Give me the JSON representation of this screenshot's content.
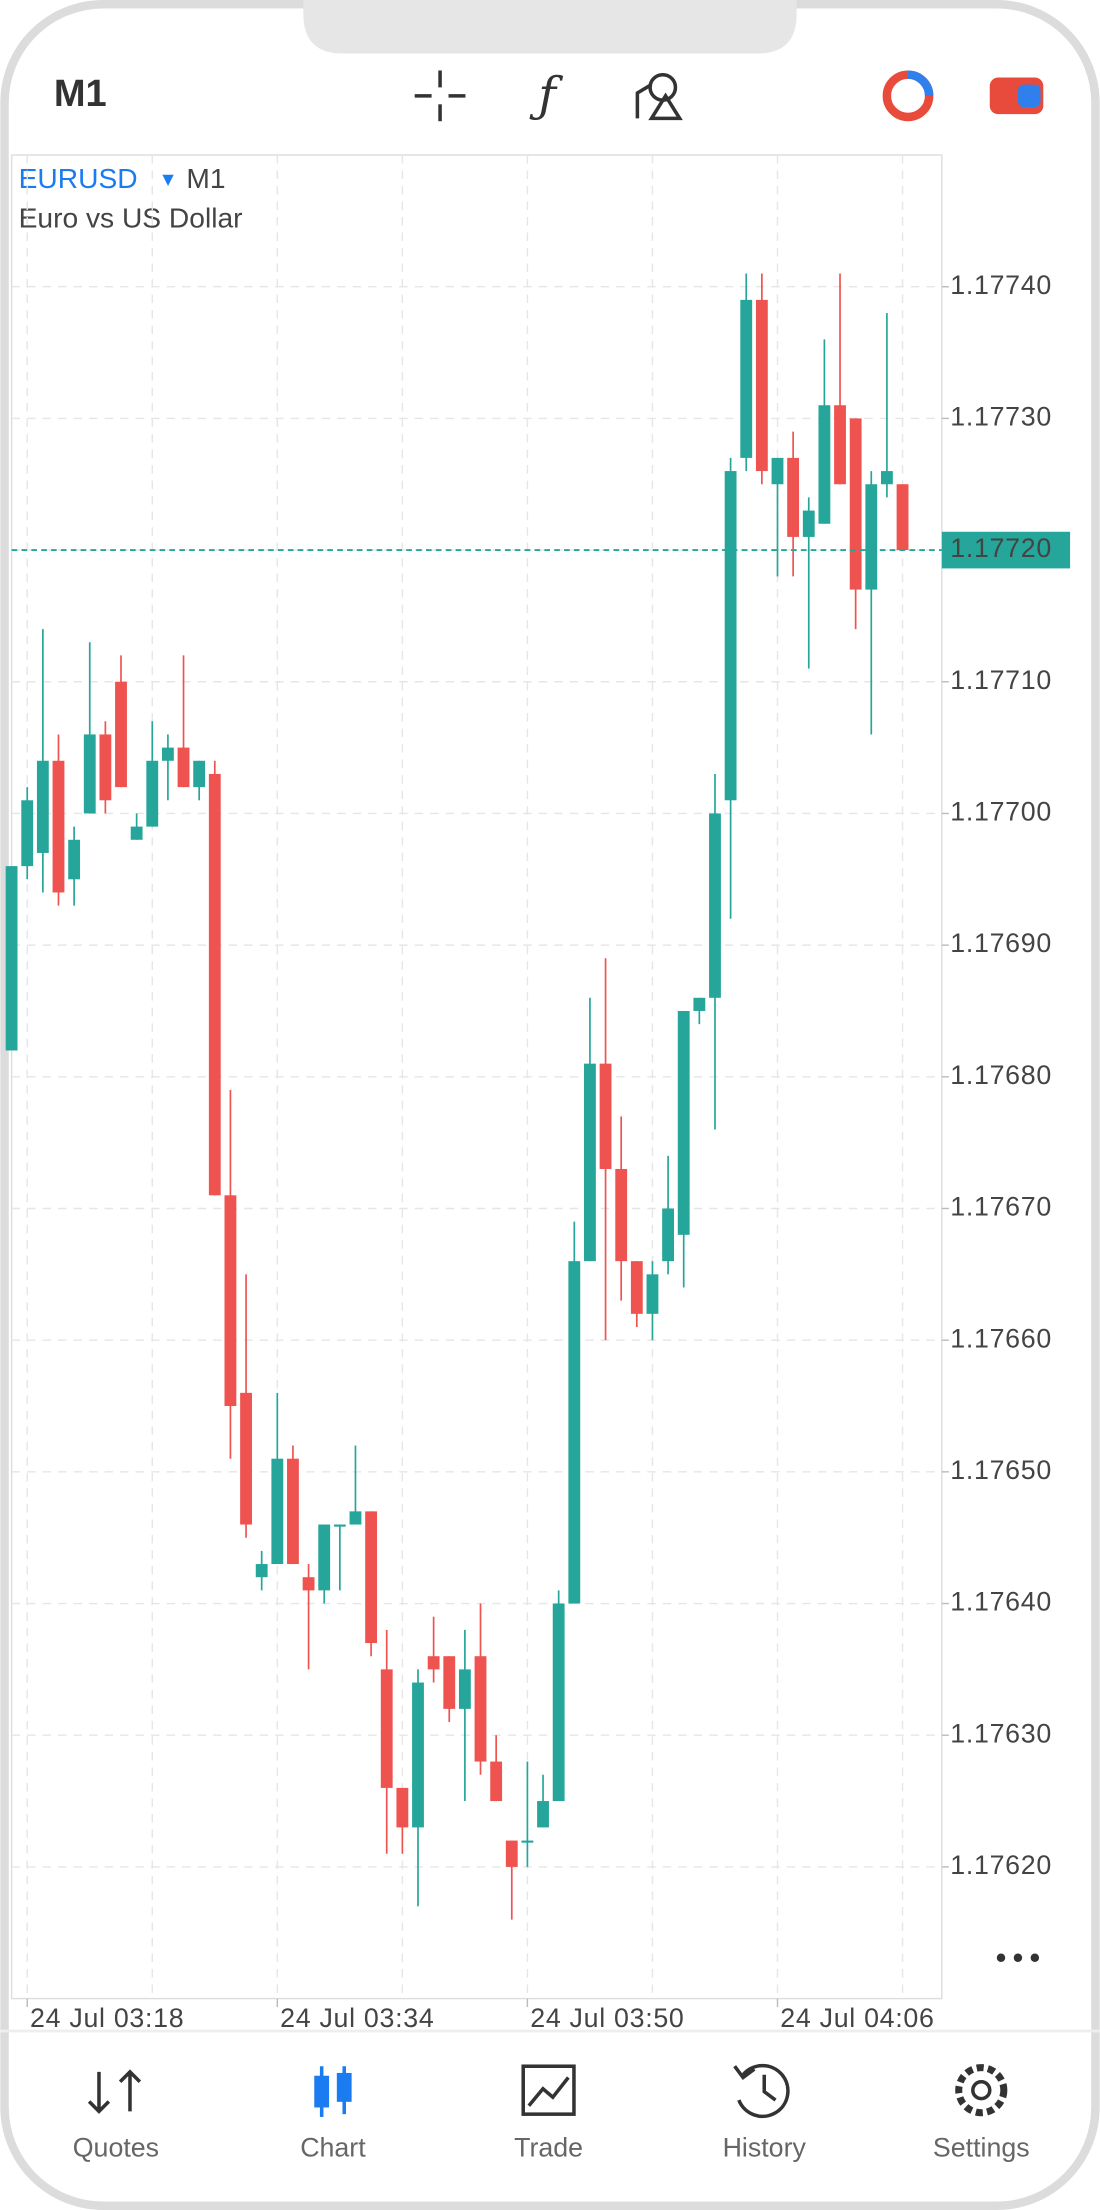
{
  "ui": {
    "timeframe": "M1",
    "symbol": "EURUSD",
    "symbol_timeframe": "M1",
    "description": "Euro vs US Dollar",
    "nav": [
      "Quotes",
      "Chart",
      "Trade",
      "History",
      "Settings"
    ],
    "active_nav": 1
  },
  "chart_data": {
    "type": "candlestick",
    "categories": [
      null,
      "24 Jul 03:18",
      null,
      null,
      null,
      null,
      null,
      null,
      null,
      null,
      null,
      null,
      null,
      null,
      null,
      null,
      null,
      "24 Jul 03:34",
      null,
      null,
      null,
      null,
      null,
      null,
      null,
      null,
      null,
      null,
      null,
      null,
      null,
      null,
      null,
      "24 Jul 03:50",
      null,
      null,
      null,
      null,
      null,
      null,
      null,
      null,
      null,
      null,
      null,
      null,
      null,
      null,
      null,
      "24 Jul 04:06",
      null,
      null,
      null,
      null,
      null,
      null,
      null,
      null
    ],
    "open": [
      1.17682,
      1.17696,
      1.17697,
      1.17704,
      1.17695,
      1.177,
      1.17706,
      1.1771,
      1.17698,
      1.17699,
      1.17704,
      1.17705,
      1.17702,
      1.17703,
      1.17671,
      1.17656,
      1.17642,
      1.17643,
      1.17651,
      1.17642,
      1.17641,
      1.17646,
      1.17646,
      1.17647,
      1.17635,
      1.17626,
      1.17623,
      1.17636,
      1.17636,
      1.17632,
      1.17636,
      1.17628,
      1.17622,
      1.17622,
      1.17623,
      1.17625,
      1.1764,
      1.17666,
      1.17681,
      1.17673,
      1.17666,
      1.17662,
      1.17666,
      1.17668,
      1.17685,
      1.17686,
      1.17701,
      1.17727,
      1.17739,
      1.17725,
      1.17727,
      1.17721,
      1.17722,
      1.17731,
      1.1773,
      1.17717,
      1.17725,
      1.17725
    ],
    "high": [
      1.17696,
      1.17702,
      1.17714,
      1.17706,
      1.17699,
      1.17713,
      1.17707,
      1.17712,
      1.177,
      1.17707,
      1.17706,
      1.17712,
      1.17704,
      1.17704,
      1.17679,
      1.17665,
      1.17644,
      1.17656,
      1.17652,
      1.17643,
      1.17646,
      1.17646,
      1.17652,
      1.17647,
      1.17638,
      1.17626,
      1.17635,
      1.17639,
      1.17636,
      1.17638,
      1.1764,
      1.1763,
      1.17622,
      1.17628,
      1.17627,
      1.17641,
      1.17669,
      1.17686,
      1.17689,
      1.17677,
      1.17666,
      1.17666,
      1.17674,
      1.17685,
      1.17686,
      1.17703,
      1.17727,
      1.17741,
      1.17741,
      1.17727,
      1.17729,
      1.17724,
      1.17736,
      1.17741,
      1.1773,
      1.17726,
      1.17738,
      1.17725
    ],
    "low": [
      1.17682,
      1.17695,
      1.17694,
      1.17693,
      1.17693,
      1.177,
      1.177,
      1.17702,
      1.17698,
      1.17699,
      1.17701,
      1.17702,
      1.17701,
      1.17671,
      1.17651,
      1.17645,
      1.17641,
      1.17643,
      1.17643,
      1.17635,
      1.1764,
      1.17641,
      1.17646,
      1.17636,
      1.17621,
      1.17621,
      1.17617,
      1.17634,
      1.17631,
      1.17625,
      1.17627,
      1.17625,
      1.17616,
      1.1762,
      1.17623,
      1.17625,
      1.1764,
      1.17666,
      1.1766,
      1.17663,
      1.17661,
      1.1766,
      1.17665,
      1.17664,
      1.17684,
      1.17676,
      1.17692,
      1.17726,
      1.17725,
      1.17718,
      1.17718,
      1.17711,
      1.17722,
      1.17725,
      1.17714,
      1.17706,
      1.17724,
      1.1772
    ],
    "close": [
      1.17696,
      1.17701,
      1.17704,
      1.17694,
      1.17698,
      1.17706,
      1.17701,
      1.17702,
      1.17699,
      1.17704,
      1.17705,
      1.17702,
      1.17704,
      1.17671,
      1.17655,
      1.17646,
      1.17643,
      1.17651,
      1.17643,
      1.17641,
      1.17646,
      1.17646,
      1.17647,
      1.17637,
      1.17626,
      1.17623,
      1.17634,
      1.17635,
      1.17632,
      1.17635,
      1.17628,
      1.17625,
      1.1762,
      1.17622,
      1.17625,
      1.1764,
      1.17666,
      1.17681,
      1.17673,
      1.17666,
      1.17662,
      1.17665,
      1.1767,
      1.17685,
      1.17686,
      1.177,
      1.17726,
      1.17739,
      1.17726,
      1.17727,
      1.17721,
      1.17723,
      1.17731,
      1.17725,
      1.17717,
      1.17725,
      1.17726,
      1.1772
    ],
    "up_color": "#26a69a",
    "down_color": "#ef5350",
    "current_price": {
      "value": 1.1772,
      "label": "1.17720"
    },
    "ylim": [
      1.1761,
      1.1775
    ],
    "yticks": [
      {
        "value": 1.1774,
        "label": "1.17740"
      },
      {
        "value": 1.1773,
        "label": "1.17730"
      },
      {
        "value": 1.1772,
        "label": "1.17720"
      },
      {
        "value": 1.1771,
        "label": "1.17710"
      },
      {
        "value": 1.177,
        "label": "1.17700"
      },
      {
        "value": 1.1769,
        "label": "1.17690"
      },
      {
        "value": 1.1768,
        "label": "1.17680"
      },
      {
        "value": 1.1767,
        "label": "1.17670"
      },
      {
        "value": 1.1766,
        "label": "1.17660"
      },
      {
        "value": 1.1765,
        "label": "1.17650"
      },
      {
        "value": 1.1764,
        "label": "1.17640"
      },
      {
        "value": 1.1763,
        "label": "1.17630"
      },
      {
        "value": 1.1762,
        "label": "1.17620"
      }
    ],
    "grid": true
  }
}
